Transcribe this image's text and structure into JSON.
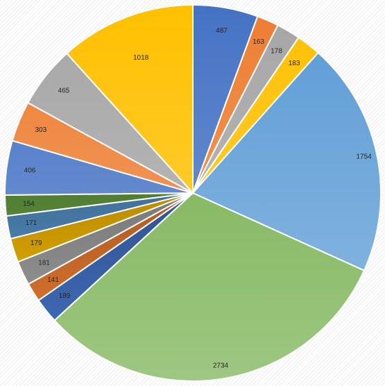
{
  "chart_data": {
    "type": "pie",
    "title": "",
    "start_angle_deg": 0,
    "direction": "clockwise",
    "data_labels": "values",
    "legend": "none",
    "values": [
      487,
      163,
      178,
      183,
      1754,
      2734,
      189,
      141,
      181,
      179,
      171,
      154,
      406,
      303,
      465,
      1018
    ],
    "colors": [
      "#4472c4",
      "#ed7d31",
      "#a5a5a5",
      "#ffc000",
      "#5b9bd5",
      "#70ad47",
      "#4472c4",
      "#ed7d31",
      "#a5a5a5",
      "#ffc000",
      "#5b9bd5",
      "#70ad47",
      "#4472c4",
      "#ed7d31",
      "#a5a5a5",
      "#ffc000"
    ],
    "styles": [
      "bright",
      "bright",
      "bright",
      "bright",
      "bright",
      "bright",
      "dark",
      "dark",
      "dark",
      "dark",
      "dark",
      "dark",
      "bright",
      "bright",
      "bright",
      "bright"
    ]
  }
}
